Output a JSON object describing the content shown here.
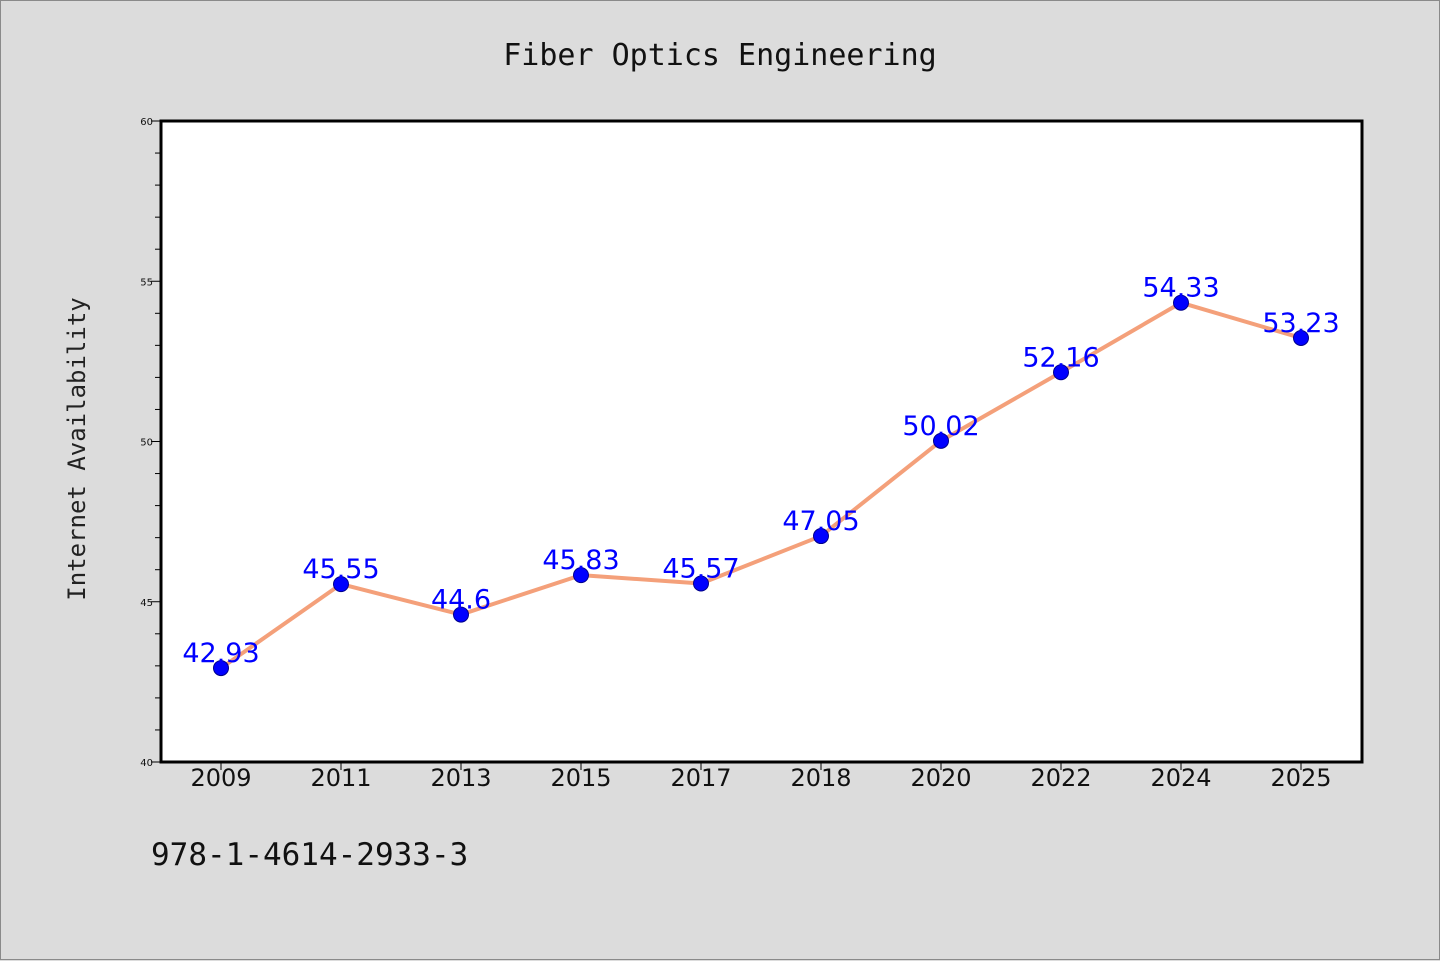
{
  "footer_text": "978-1-4614-2933-3",
  "colors": {
    "background": "#dcdcdc",
    "plot_background": "#ffffff",
    "line": "#f4a07a",
    "marker": "#0000ff",
    "data_label": "#0000ff"
  },
  "chart_data": {
    "type": "line",
    "title": "Fiber Optics Engineering",
    "xlabel": "",
    "ylabel": "Internet Availability",
    "categories": [
      "2009",
      "2011",
      "2013",
      "2015",
      "2017",
      "2018",
      "2020",
      "2022",
      "2024",
      "2025"
    ],
    "values": [
      42.93,
      45.55,
      44.6,
      45.83,
      45.57,
      47.05,
      50.02,
      52.16,
      54.33,
      53.23
    ],
    "data_labels": [
      "42.93",
      "45.55",
      "44.6",
      "45.83",
      "45.57",
      "47.05",
      "50.02",
      "52.16",
      "54.33",
      "53.23"
    ],
    "ylim": [
      40,
      60
    ],
    "yticks": [
      40,
      45,
      50,
      55,
      60
    ],
    "yticks_minor_step": 1,
    "grid": false,
    "legend": "none"
  }
}
